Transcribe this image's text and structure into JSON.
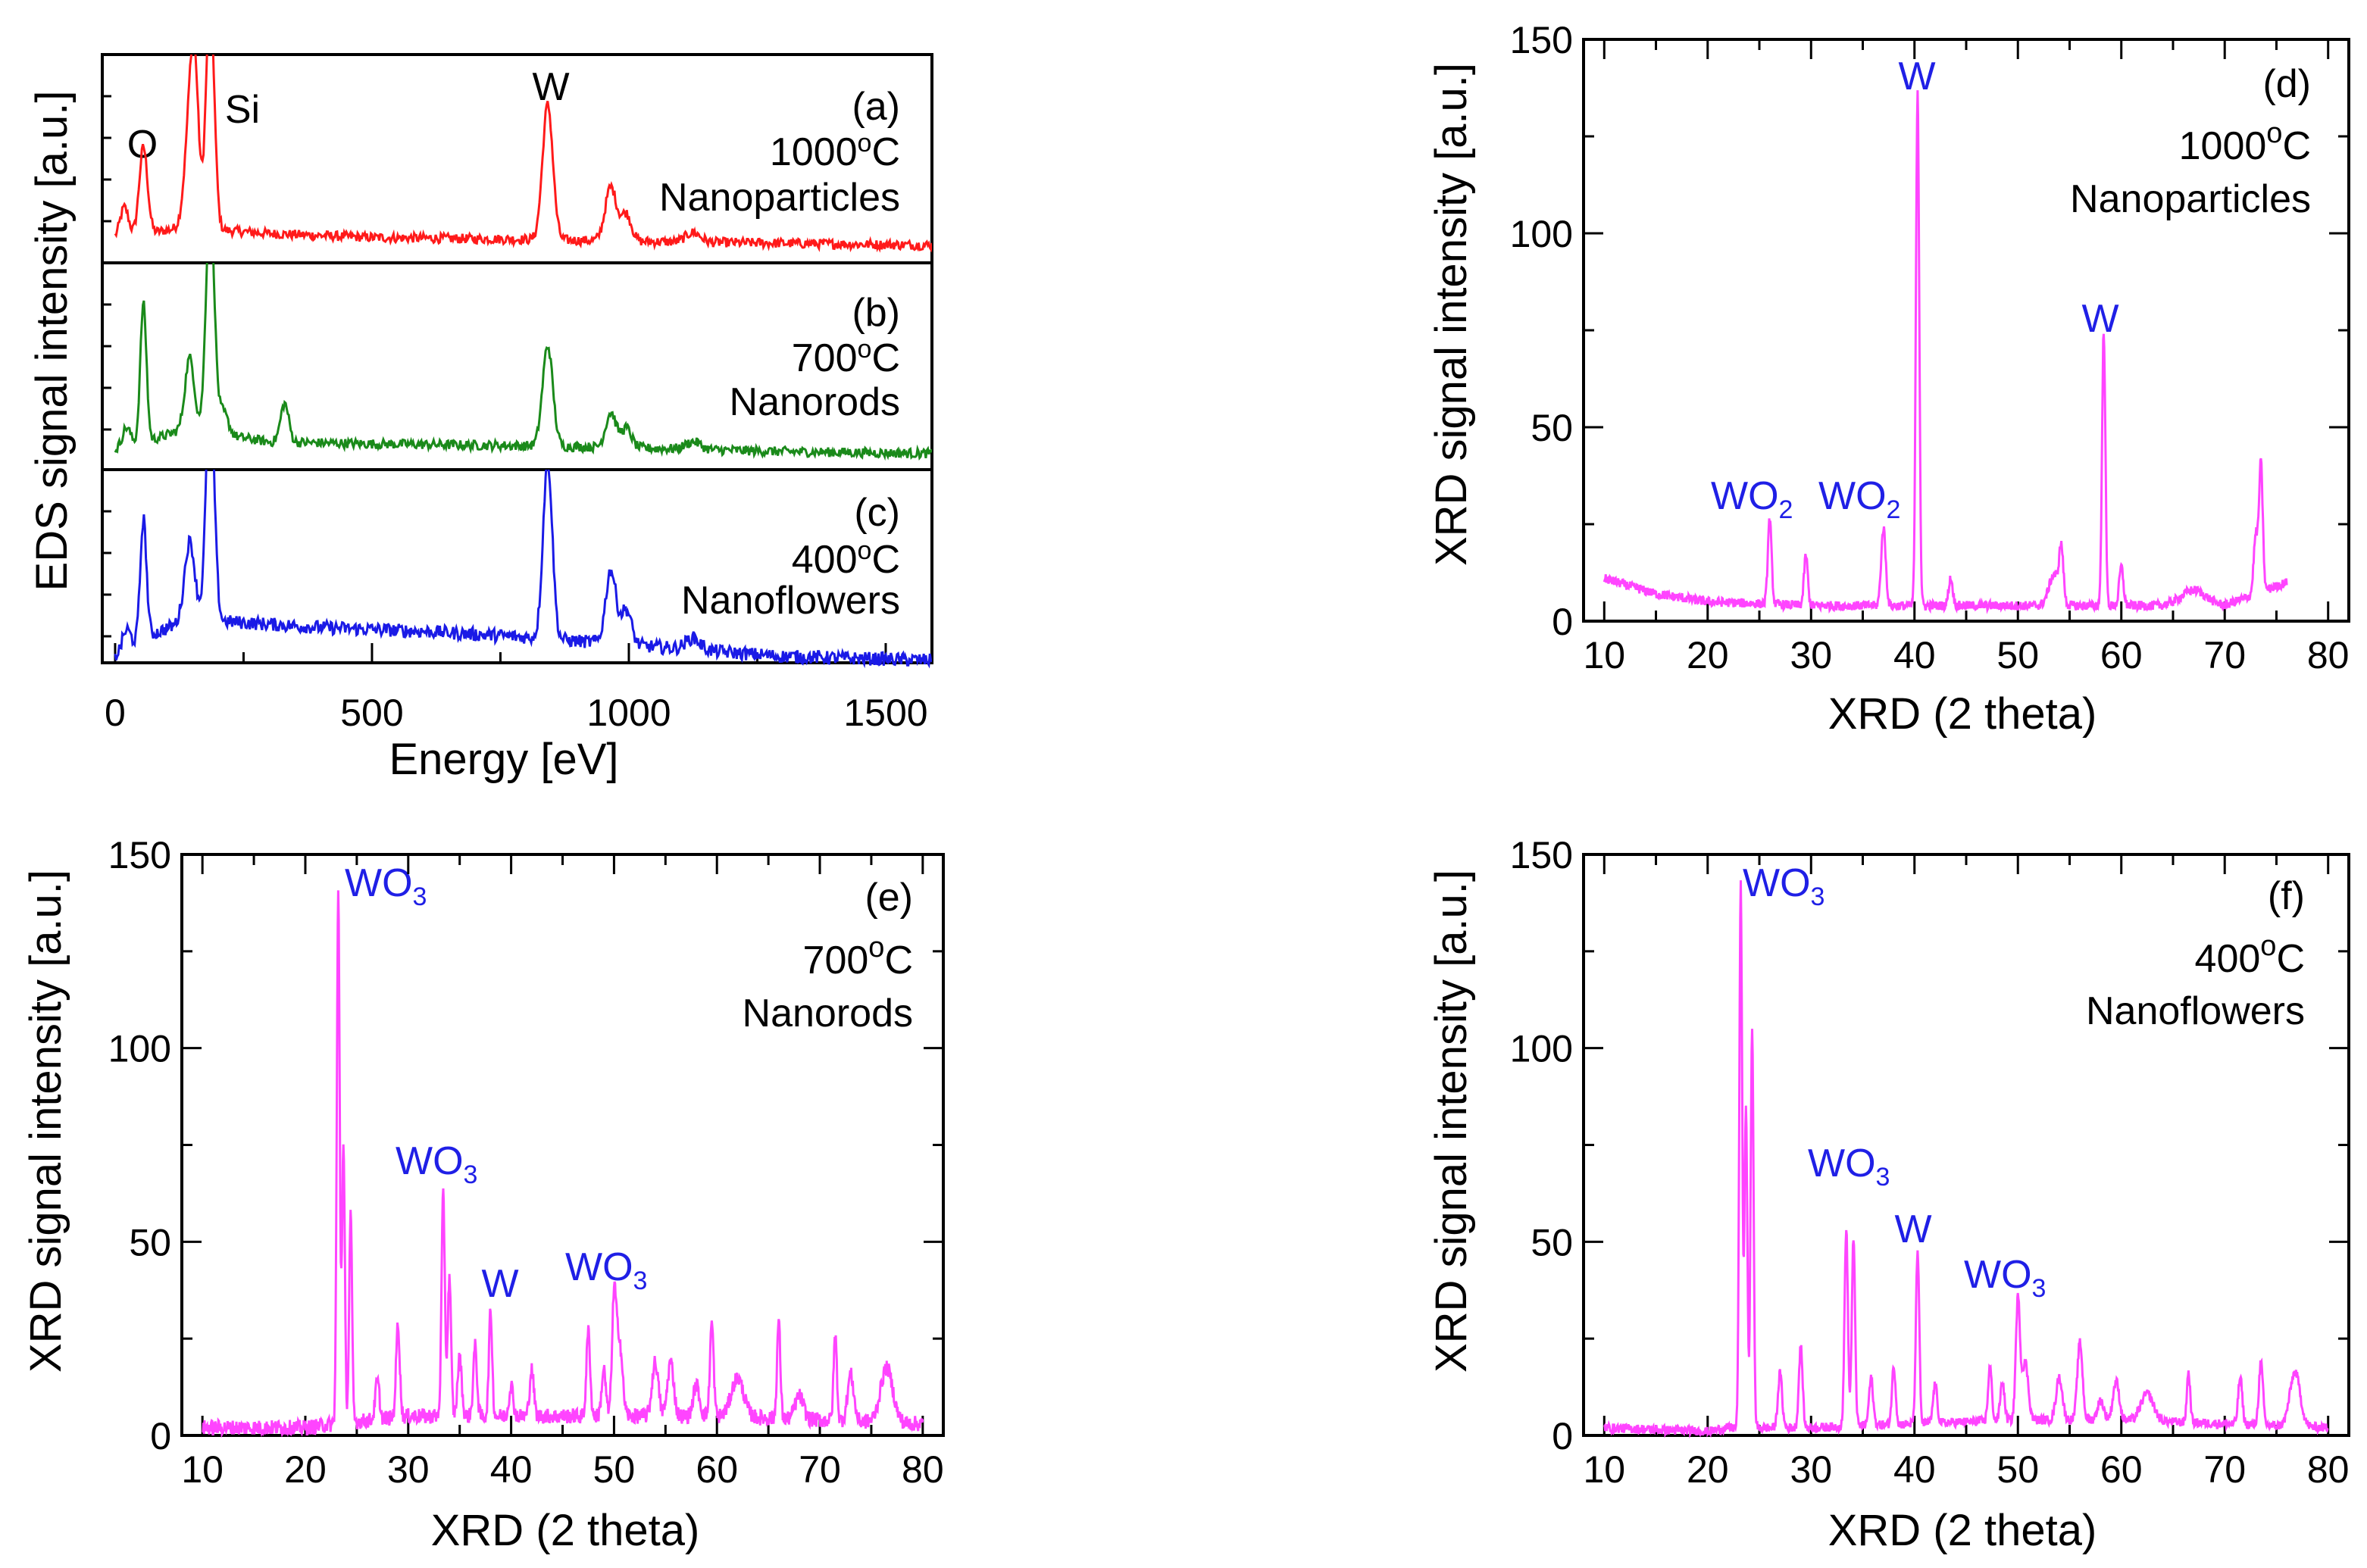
{
  "figure": {
    "colors": {
      "red": "#ff1a1a",
      "green": "#1a8a1a",
      "blue": "#1a1ae6",
      "magenta": "#ff44ff",
      "label": "#1f1fe6",
      "axis": "#000000"
    }
  },
  "chart_data": [
    {
      "id": "eds",
      "type": "line",
      "xlabel": "Energy [eV]",
      "ylabel": "EDS signal intensity [a.u.]",
      "xlim": [
        -25,
        1590
      ],
      "x_ticks": [
        "0",
        "500",
        "1000",
        "1500"
      ],
      "x_tick_values": [
        0,
        500,
        1000,
        1500
      ],
      "stack_annotations": {
        "O": "O",
        "Si": "Si",
        "W": "W"
      },
      "series": [
        {
          "name": "(a)",
          "tag": "(a)",
          "temp": "1000",
          "deg": "o",
          "unit": "C",
          "morph": "Nanoparticles",
          "color": "#ff1a1a",
          "baseline": [
            [
              0,
              0.1
            ],
            [
              60,
              0.12
            ],
            [
              150,
              0.16
            ],
            [
              200,
              0.14
            ],
            [
              300,
              0.12
            ],
            [
              500,
              0.1
            ],
            [
              800,
              0.09
            ],
            [
              1000,
              0.08
            ],
            [
              1300,
              0.07
            ],
            [
              1590,
              0.06
            ]
          ],
          "peaks": [
            [
              18,
              0.15,
              8
            ],
            [
              55,
              0.45,
              8
            ],
            [
              145,
              0.48,
              10
            ],
            [
              155,
              0.65,
              8
            ],
            [
              185,
              1.2,
              8
            ],
            [
              842,
              0.7,
              10
            ],
            [
              965,
              0.28,
              11
            ],
            [
              995,
              0.14,
              10
            ],
            [
              1125,
              0.05,
              14
            ]
          ],
          "noise": 0.025
        },
        {
          "name": "(b)",
          "tag": "(b)",
          "temp": "700",
          "deg": "o",
          "unit": "C",
          "morph": "Nanorods",
          "color": "#1a8a1a",
          "baseline": [
            [
              0,
              0.08
            ],
            [
              60,
              0.12
            ],
            [
              150,
              0.2
            ],
            [
              200,
              0.16
            ],
            [
              300,
              0.12
            ],
            [
              500,
              0.11
            ],
            [
              800,
              0.1
            ],
            [
              1000,
              0.09
            ],
            [
              1300,
              0.07
            ],
            [
              1590,
              0.06
            ]
          ],
          "peaks": [
            [
              22,
              0.1,
              8
            ],
            [
              55,
              0.72,
              6
            ],
            [
              145,
              0.36,
              9
            ],
            [
              185,
              1.2,
              8
            ],
            [
              210,
              0.12,
              10
            ],
            [
              330,
              0.2,
              8
            ],
            [
              842,
              0.52,
              10
            ],
            [
              965,
              0.18,
              10
            ],
            [
              995,
              0.1,
              10
            ],
            [
              1125,
              0.04,
              14
            ]
          ],
          "noise": 0.025
        },
        {
          "name": "(c)",
          "tag": "(c)",
          "temp": "400",
          "deg": "o",
          "unit": "C",
          "morph": "Nanoflowers",
          "color": "#1a1ae6",
          "baseline": [
            [
              0,
              0.08
            ],
            [
              60,
              0.18
            ],
            [
              150,
              0.28
            ],
            [
              220,
              0.26
            ],
            [
              400,
              0.23
            ],
            [
              600,
              0.21
            ],
            [
              800,
              0.18
            ],
            [
              1000,
              0.14
            ],
            [
              1300,
              0.08
            ],
            [
              1590,
              0.06
            ]
          ],
          "peaks": [
            [
              22,
              0.1,
              8
            ],
            [
              55,
              0.62,
              6
            ],
            [
              145,
              0.4,
              10
            ],
            [
              185,
              1.2,
              8
            ],
            [
              842,
              0.92,
              9
            ],
            [
              965,
              0.38,
              10
            ],
            [
              995,
              0.18,
              10
            ],
            [
              1125,
              0.06,
              14
            ]
          ],
          "noise": 0.035
        }
      ]
    },
    {
      "id": "xrd-d",
      "type": "line",
      "tag": "(d)",
      "temp": "1000",
      "deg": "o",
      "unit": "C",
      "morph": "Nanoparticles",
      "xlabel": "XRD (2 theta)",
      "ylabel": "XRD signal intensity [a.u.]",
      "xlim": [
        8,
        82
      ],
      "ylim": [
        0,
        150
      ],
      "x_ticks": [
        "10",
        "20",
        "30",
        "40",
        "50",
        "60",
        "70",
        "80"
      ],
      "x_tick_values": [
        10,
        20,
        30,
        40,
        50,
        60,
        70,
        80
      ],
      "y_ticks": [
        "0",
        "50",
        "100",
        "150"
      ],
      "y_tick_values": [
        0,
        50,
        100,
        150
      ],
      "color": "#ff44ff",
      "x_range": [
        10,
        76
      ],
      "baseline": [
        [
          10,
          11
        ],
        [
          15,
          7
        ],
        [
          20,
          5
        ],
        [
          30,
          4
        ],
        [
          40,
          4
        ],
        [
          50,
          4
        ],
        [
          60,
          4
        ],
        [
          70,
          4
        ],
        [
          76,
          10
        ]
      ],
      "peaks": [
        [
          26,
          22,
          0.18
        ],
        [
          29.5,
          13,
          0.18
        ],
        [
          37,
          20,
          0.22
        ],
        [
          40.3,
          133,
          0.16
        ],
        [
          43.5,
          7,
          0.2
        ],
        [
          53.5,
          8,
          0.5
        ],
        [
          54.2,
          13,
          0.2
        ],
        [
          58.3,
          71,
          0.16
        ],
        [
          60,
          10,
          0.2
        ],
        [
          67,
          4,
          1.2
        ],
        [
          73,
          15,
          0.2
        ],
        [
          73.5,
          33,
          0.18
        ]
      ],
      "noise": 1.2,
      "annotations": [
        {
          "text": "WO",
          "sub": "2"
        },
        {
          "text": "WO",
          "sub": "2"
        },
        {
          "text": "W"
        },
        {
          "text": "W"
        }
      ]
    },
    {
      "id": "xrd-e",
      "type": "line",
      "tag": "(e)",
      "temp": "700",
      "deg": "o",
      "unit": "C",
      "morph": "Nanorods",
      "xlabel": "XRD (2 theta)",
      "ylabel": "XRD signal intensity [a.u.]",
      "xlim": [
        8,
        82
      ],
      "ylim": [
        0,
        150
      ],
      "x_ticks": [
        "10",
        "20",
        "30",
        "40",
        "50",
        "60",
        "70",
        "80"
      ],
      "x_tick_values": [
        10,
        20,
        30,
        40,
        50,
        60,
        70,
        80
      ],
      "y_ticks": [
        "0",
        "50",
        "100",
        "150"
      ],
      "y_tick_values": [
        0,
        50,
        100,
        150
      ],
      "color": "#ff44ff",
      "x_range": [
        10,
        80
      ],
      "baseline": [
        [
          10,
          2
        ],
        [
          20,
          2
        ],
        [
          23,
          3
        ],
        [
          30,
          5
        ],
        [
          40,
          5
        ],
        [
          50,
          5
        ],
        [
          60,
          5
        ],
        [
          70,
          4
        ],
        [
          80,
          3
        ]
      ],
      "peaks": [
        [
          23.2,
          137,
          0.14
        ],
        [
          23.7,
          71,
          0.14
        ],
        [
          24.4,
          54,
          0.14
        ],
        [
          27,
          10,
          0.2
        ],
        [
          29,
          24,
          0.18
        ],
        [
          33.4,
          57,
          0.16
        ],
        [
          34,
          36,
          0.16
        ],
        [
          35,
          15,
          0.2
        ],
        [
          36.5,
          18,
          0.18
        ],
        [
          38,
          27,
          0.16
        ],
        [
          40,
          8,
          0.2
        ],
        [
          42,
          12,
          0.2
        ],
        [
          47.5,
          22,
          0.18
        ],
        [
          49,
          12,
          0.2
        ],
        [
          50,
          28,
          0.2
        ],
        [
          50.5,
          20,
          0.3
        ],
        [
          54,
          14,
          0.3
        ],
        [
          55.5,
          14,
          0.3
        ],
        [
          58,
          8,
          0.3
        ],
        [
          59.5,
          24,
          0.18
        ],
        [
          62,
          10,
          0.6
        ],
        [
          66,
          25,
          0.16
        ],
        [
          68,
          6,
          0.4
        ],
        [
          71.5,
          22,
          0.16
        ],
        [
          73,
          12,
          0.3
        ],
        [
          76.5,
          14,
          0.6
        ]
      ],
      "noise": 2.0,
      "annotations": [
        {
          "text": "WO",
          "sub": "3"
        },
        {
          "text": "WO",
          "sub": "3"
        },
        {
          "text": "W"
        },
        {
          "text": "WO",
          "sub": "3"
        }
      ]
    },
    {
      "id": "xrd-f",
      "type": "line",
      "tag": "(f)",
      "temp": "400",
      "deg": "o",
      "unit": "C",
      "morph": "Nanoflowers",
      "xlabel": "XRD (2 theta)",
      "ylabel": "XRD signal intensity [a.u.]",
      "xlim": [
        8,
        82
      ],
      "ylim": [
        0,
        150
      ],
      "x_ticks": [
        "10",
        "20",
        "30",
        "40",
        "50",
        "60",
        "70",
        "80"
      ],
      "x_tick_values": [
        10,
        20,
        30,
        40,
        50,
        60,
        70,
        80
      ],
      "y_ticks": [
        "0",
        "50",
        "100",
        "150"
      ],
      "y_tick_values": [
        0,
        50,
        100,
        150
      ],
      "color": "#ff44ff",
      "x_range": [
        10,
        80
      ],
      "baseline": [
        [
          10,
          2
        ],
        [
          20,
          1
        ],
        [
          22,
          2
        ],
        [
          30,
          2
        ],
        [
          40,
          3
        ],
        [
          50,
          4
        ],
        [
          60,
          4
        ],
        [
          70,
          3
        ],
        [
          80,
          2
        ]
      ],
      "peaks": [
        [
          23.2,
          140,
          0.14
        ],
        [
          23.7,
          83,
          0.14
        ],
        [
          24.3,
          104,
          0.14
        ],
        [
          27,
          14,
          0.2
        ],
        [
          29,
          21,
          0.18
        ],
        [
          33.4,
          51,
          0.16
        ],
        [
          34.1,
          48,
          0.16
        ],
        [
          35.8,
          12,
          0.2
        ],
        [
          38,
          15,
          0.18
        ],
        [
          40.3,
          45,
          0.16
        ],
        [
          42,
          10,
          0.2
        ],
        [
          47.3,
          14,
          0.18
        ],
        [
          48.5,
          10,
          0.2
        ],
        [
          50,
          31,
          0.2
        ],
        [
          50.7,
          15,
          0.3
        ],
        [
          54,
          11,
          0.3
        ],
        [
          56,
          20,
          0.25
        ],
        [
          58,
          5,
          0.3
        ],
        [
          59.5,
          10,
          0.3
        ],
        [
          62.5,
          7,
          0.6
        ],
        [
          66.5,
          13,
          0.16
        ],
        [
          71.5,
          12,
          0.2
        ],
        [
          73.5,
          16,
          0.2
        ],
        [
          76.8,
          14,
          0.5
        ]
      ],
      "noise": 1.2,
      "annotations": [
        {
          "text": "WO",
          "sub": "3"
        },
        {
          "text": "WO",
          "sub": "3"
        },
        {
          "text": "W"
        },
        {
          "text": "WO",
          "sub": "3"
        }
      ]
    }
  ]
}
